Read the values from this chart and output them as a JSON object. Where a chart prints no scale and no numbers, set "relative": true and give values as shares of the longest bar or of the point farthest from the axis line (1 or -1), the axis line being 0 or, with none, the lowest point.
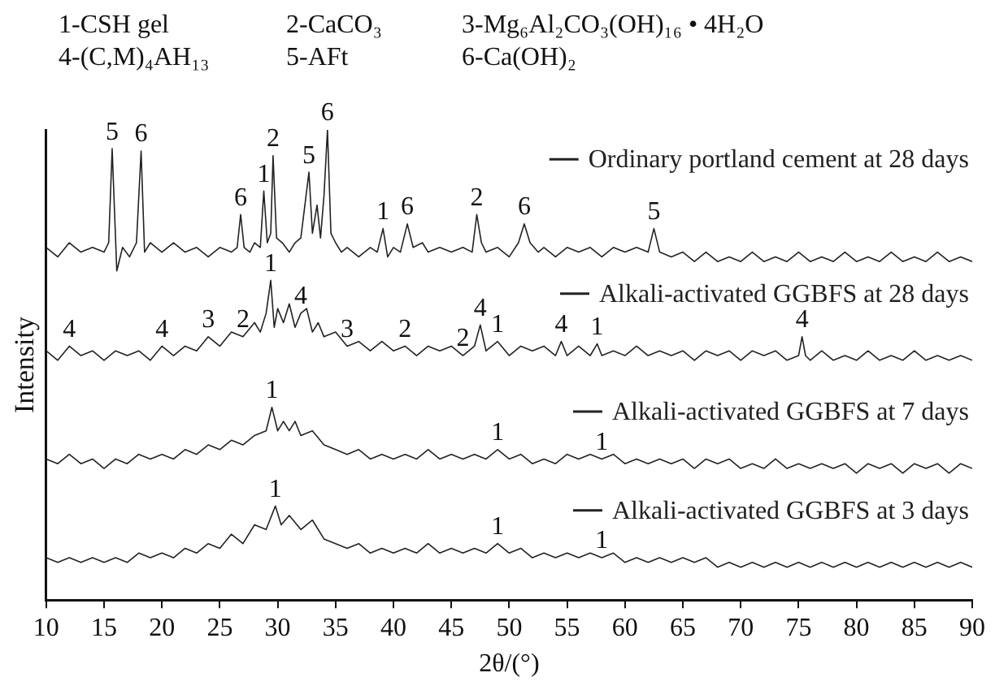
{
  "chart_data": {
    "type": "line",
    "legend": "right",
    "xlabel": "2θ/(°)",
    "ylabel": "Intensity",
    "relative": true,
    "marker": "none",
    "xlim": [
      10,
      90
    ],
    "xticks": [
      10,
      15,
      20,
      25,
      30,
      35,
      40,
      45,
      50,
      55,
      60,
      65,
      70,
      75,
      80,
      85,
      90
    ],
    "series": [
      {
        "name": "Ordinary portland cement at 28 days",
        "color": "#222222",
        "x": [
          10,
          11,
          12,
          13,
          14,
          15,
          15.4,
          15.7,
          16.1,
          16.6,
          17.2,
          17.8,
          18.2,
          18.5,
          19,
          20,
          21,
          22,
          23,
          24,
          25,
          26,
          26.5,
          26.8,
          27.1,
          27.6,
          28,
          28.5,
          28.8,
          29.1,
          29.4,
          29.6,
          29.9,
          30.4,
          31,
          31.5,
          32,
          32.4,
          32.7,
          33,
          33.4,
          33.7,
          34,
          34.3,
          34.6,
          35,
          35.5,
          36,
          37,
          38,
          38.6,
          39.1,
          39.5,
          40,
          40.6,
          41.2,
          41.7,
          42.5,
          43,
          44,
          45,
          46,
          46.8,
          47.2,
          47.6,
          48,
          49,
          50,
          50.8,
          51.3,
          51.8,
          52.5,
          53,
          54,
          55,
          56,
          57,
          58,
          59,
          60,
          61,
          62,
          62.5,
          63,
          64,
          65,
          66,
          67,
          68,
          69,
          70,
          71,
          72,
          73,
          74,
          75,
          76,
          77,
          78,
          79,
          80,
          81,
          82,
          83,
          84,
          85,
          86,
          87,
          88,
          89,
          90
        ],
        "values": [
          0.75,
          0.73,
          0.76,
          0.74,
          0.75,
          0.74,
          0.76,
          0.96,
          0.7,
          0.75,
          0.73,
          0.76,
          0.955,
          0.74,
          0.76,
          0.74,
          0.76,
          0.74,
          0.75,
          0.73,
          0.75,
          0.74,
          0.75,
          0.82,
          0.75,
          0.74,
          0.76,
          0.75,
          0.87,
          0.76,
          0.78,
          0.945,
          0.77,
          0.76,
          0.74,
          0.76,
          0.77,
          0.85,
          0.91,
          0.78,
          0.84,
          0.77,
          0.86,
          1.0,
          0.78,
          0.76,
          0.74,
          0.75,
          0.73,
          0.75,
          0.74,
          0.79,
          0.73,
          0.75,
          0.74,
          0.8,
          0.75,
          0.76,
          0.74,
          0.75,
          0.74,
          0.75,
          0.74,
          0.82,
          0.76,
          0.74,
          0.75,
          0.73,
          0.76,
          0.8,
          0.76,
          0.74,
          0.75,
          0.73,
          0.75,
          0.74,
          0.75,
          0.73,
          0.75,
          0.74,
          0.75,
          0.74,
          0.79,
          0.74,
          0.73,
          0.74,
          0.72,
          0.74,
          0.72,
          0.73,
          0.72,
          0.74,
          0.72,
          0.73,
          0.72,
          0.74,
          0.72,
          0.73,
          0.72,
          0.74,
          0.72,
          0.73,
          0.72,
          0.74,
          0.72,
          0.73,
          0.72,
          0.74,
          0.72,
          0.73,
          0.72
        ]
      },
      {
        "name": "Alkali-activated GGBFS at 28 days",
        "color": "#222222",
        "x": [
          10,
          11,
          12,
          13,
          14,
          15,
          16,
          17,
          18,
          19,
          20,
          21,
          22,
          23,
          24,
          25,
          26,
          27,
          28,
          28.5,
          29,
          29.4,
          29.7,
          30,
          30.5,
          31,
          31.5,
          32,
          32.5,
          33,
          33.5,
          34,
          35,
          36,
          37,
          38,
          39,
          40,
          41,
          42,
          43,
          44,
          45,
          46,
          47,
          47.5,
          48,
          49,
          50,
          51,
          52,
          53,
          54,
          54.5,
          55,
          56,
          57,
          57.6,
          58,
          59,
          60,
          61,
          62,
          63,
          64,
          65,
          66,
          67,
          68,
          69,
          70,
          71,
          72,
          73,
          74,
          75,
          75.3,
          75.6,
          76,
          77,
          78,
          79,
          80,
          81,
          82,
          83,
          84,
          85,
          86,
          87,
          88,
          89,
          90
        ],
        "values": [
          0.53,
          0.51,
          0.54,
          0.52,
          0.53,
          0.51,
          0.53,
          0.52,
          0.53,
          0.51,
          0.54,
          0.52,
          0.54,
          0.53,
          0.56,
          0.54,
          0.57,
          0.56,
          0.59,
          0.57,
          0.61,
          0.68,
          0.58,
          0.62,
          0.59,
          0.63,
          0.58,
          0.61,
          0.62,
          0.57,
          0.59,
          0.56,
          0.57,
          0.54,
          0.55,
          0.53,
          0.55,
          0.53,
          0.54,
          0.52,
          0.54,
          0.53,
          0.54,
          0.52,
          0.54,
          0.585,
          0.53,
          0.55,
          0.52,
          0.54,
          0.53,
          0.54,
          0.52,
          0.55,
          0.52,
          0.54,
          0.52,
          0.545,
          0.52,
          0.53,
          0.52,
          0.54,
          0.52,
          0.53,
          0.52,
          0.53,
          0.51,
          0.53,
          0.52,
          0.53,
          0.51,
          0.53,
          0.52,
          0.53,
          0.51,
          0.52,
          0.56,
          0.52,
          0.51,
          0.53,
          0.51,
          0.52,
          0.51,
          0.53,
          0.51,
          0.52,
          0.51,
          0.53,
          0.51,
          0.52,
          0.51,
          0.52,
          0.51
        ]
      },
      {
        "name": "Alkali-activated GGBFS at 7 days",
        "color": "#222222",
        "x": [
          10,
          11,
          12,
          13,
          14,
          15,
          16,
          17,
          18,
          19,
          20,
          21,
          22,
          23,
          24,
          25,
          26,
          27,
          28,
          29,
          29.5,
          30,
          30.5,
          31,
          31.5,
          32,
          33,
          34,
          35,
          36,
          37,
          38,
          39,
          40,
          41,
          42,
          43,
          44,
          45,
          46,
          47,
          48,
          49,
          50,
          51,
          52,
          53,
          54,
          55,
          56,
          57,
          58,
          59,
          60,
          61,
          62,
          63,
          64,
          65,
          66,
          67,
          68,
          69,
          70,
          71,
          72,
          73,
          74,
          75,
          76,
          77,
          78,
          79,
          80,
          81,
          82,
          83,
          84,
          85,
          86,
          87,
          88,
          89,
          90
        ],
        "values": [
          0.3,
          0.29,
          0.31,
          0.29,
          0.3,
          0.28,
          0.3,
          0.29,
          0.31,
          0.3,
          0.31,
          0.3,
          0.32,
          0.31,
          0.33,
          0.32,
          0.34,
          0.33,
          0.35,
          0.36,
          0.41,
          0.36,
          0.38,
          0.36,
          0.38,
          0.35,
          0.36,
          0.33,
          0.32,
          0.31,
          0.32,
          0.3,
          0.31,
          0.3,
          0.31,
          0.3,
          0.32,
          0.3,
          0.31,
          0.3,
          0.31,
          0.3,
          0.32,
          0.3,
          0.31,
          0.29,
          0.3,
          0.29,
          0.31,
          0.3,
          0.31,
          0.3,
          0.31,
          0.29,
          0.3,
          0.29,
          0.3,
          0.29,
          0.3,
          0.28,
          0.3,
          0.29,
          0.3,
          0.28,
          0.29,
          0.28,
          0.3,
          0.28,
          0.29,
          0.28,
          0.29,
          0.28,
          0.29,
          0.27,
          0.29,
          0.28,
          0.29,
          0.27,
          0.29,
          0.28,
          0.29,
          0.27,
          0.29,
          0.28
        ]
      },
      {
        "name": "Alkali-activated GGBFS at 3 days",
        "color": "#222222",
        "x": [
          10,
          11,
          12,
          13,
          14,
          15,
          16,
          17,
          18,
          19,
          20,
          21,
          22,
          23,
          24,
          25,
          26,
          27,
          28,
          29,
          29.8,
          30.3,
          31,
          32,
          33,
          34,
          35,
          36,
          37,
          38,
          39,
          40,
          41,
          42,
          43,
          44,
          45,
          46,
          47,
          48,
          49,
          50,
          51,
          52,
          53,
          54,
          55,
          56,
          57,
          58,
          59,
          60,
          61,
          62,
          63,
          64,
          65,
          66,
          67,
          68,
          69,
          70,
          71,
          72,
          73,
          74,
          75,
          76,
          77,
          78,
          79,
          80,
          81,
          82,
          83,
          84,
          85,
          86,
          87,
          88,
          89,
          90
        ],
        "values": [
          0.09,
          0.08,
          0.09,
          0.08,
          0.09,
          0.08,
          0.09,
          0.08,
          0.1,
          0.09,
          0.1,
          0.09,
          0.11,
          0.1,
          0.12,
          0.11,
          0.14,
          0.12,
          0.16,
          0.15,
          0.2,
          0.16,
          0.18,
          0.15,
          0.17,
          0.13,
          0.12,
          0.11,
          0.12,
          0.1,
          0.11,
          0.1,
          0.11,
          0.1,
          0.12,
          0.1,
          0.11,
          0.1,
          0.11,
          0.1,
          0.12,
          0.1,
          0.11,
          0.09,
          0.1,
          0.09,
          0.1,
          0.09,
          0.1,
          0.09,
          0.1,
          0.08,
          0.09,
          0.08,
          0.09,
          0.08,
          0.09,
          0.08,
          0.09,
          0.07,
          0.08,
          0.07,
          0.08,
          0.07,
          0.08,
          0.07,
          0.08,
          0.07,
          0.08,
          0.07,
          0.08,
          0.07,
          0.08,
          0.07,
          0.08,
          0.07,
          0.08,
          0.07,
          0.08,
          0.07,
          0.08,
          0.07
        ]
      }
    ],
    "annotations": [
      "1-CSH gel",
      "2-CaCO₃",
      "3-Mg₆Al₂CO₃(OH)₁₆ • 4H₂O",
      "4-(C,M)₄AH₁₃",
      "5-AFt",
      "6-Ca(OH)₂",
      {
        "text": "5",
        "x": 15.7,
        "y": 0.96
      },
      {
        "text": "6",
        "x": 18.2,
        "y": 0.955
      },
      {
        "text": "6",
        "x": 26.8,
        "y": 0.82
      },
      {
        "text": "1",
        "x": 28.8,
        "y": 0.87
      },
      {
        "text": "2",
        "x": 29.6,
        "y": 0.945
      },
      {
        "text": "5",
        "x": 32.7,
        "y": 0.91
      },
      {
        "text": "6",
        "x": 34.3,
        "y": 1.0
      },
      {
        "text": "1",
        "x": 39.1,
        "y": 0.79
      },
      {
        "text": "6",
        "x": 41.2,
        "y": 0.8
      },
      {
        "text": "2",
        "x": 47.2,
        "y": 0.82
      },
      {
        "text": "6",
        "x": 51.3,
        "y": 0.8
      },
      {
        "text": "5",
        "x": 62.5,
        "y": 0.79
      },
      {
        "text": "4",
        "x": 12,
        "y": 0.54
      },
      {
        "text": "4",
        "x": 20,
        "y": 0.54
      },
      {
        "text": "3",
        "x": 24,
        "y": 0.56
      },
      {
        "text": "2",
        "x": 27,
        "y": 0.56
      },
      {
        "text": "1",
        "x": 29.4,
        "y": 0.68
      },
      {
        "text": "4",
        "x": 32,
        "y": 0.61
      },
      {
        "text": "3",
        "x": 36,
        "y": 0.54
      },
      {
        "text": "2",
        "x": 41,
        "y": 0.54
      },
      {
        "text": "2",
        "x": 46,
        "y": 0.52
      },
      {
        "text": "4",
        "x": 47.5,
        "y": 0.585
      },
      {
        "text": "1",
        "x": 49,
        "y": 0.55
      },
      {
        "text": "4",
        "x": 54.5,
        "y": 0.55
      },
      {
        "text": "1",
        "x": 57.6,
        "y": 0.545
      },
      {
        "text": "4",
        "x": 75.3,
        "y": 0.56
      },
      {
        "text": "1",
        "x": 29.5,
        "y": 0.41
      },
      {
        "text": "1",
        "x": 49,
        "y": 0.32
      },
      {
        "text": "1",
        "x": 58,
        "y": 0.3
      },
      {
        "text": "1",
        "x": 29.8,
        "y": 0.2
      },
      {
        "text": "1",
        "x": 49,
        "y": 0.12
      },
      {
        "text": "1",
        "x": 58,
        "y": 0.09
      }
    ]
  }
}
